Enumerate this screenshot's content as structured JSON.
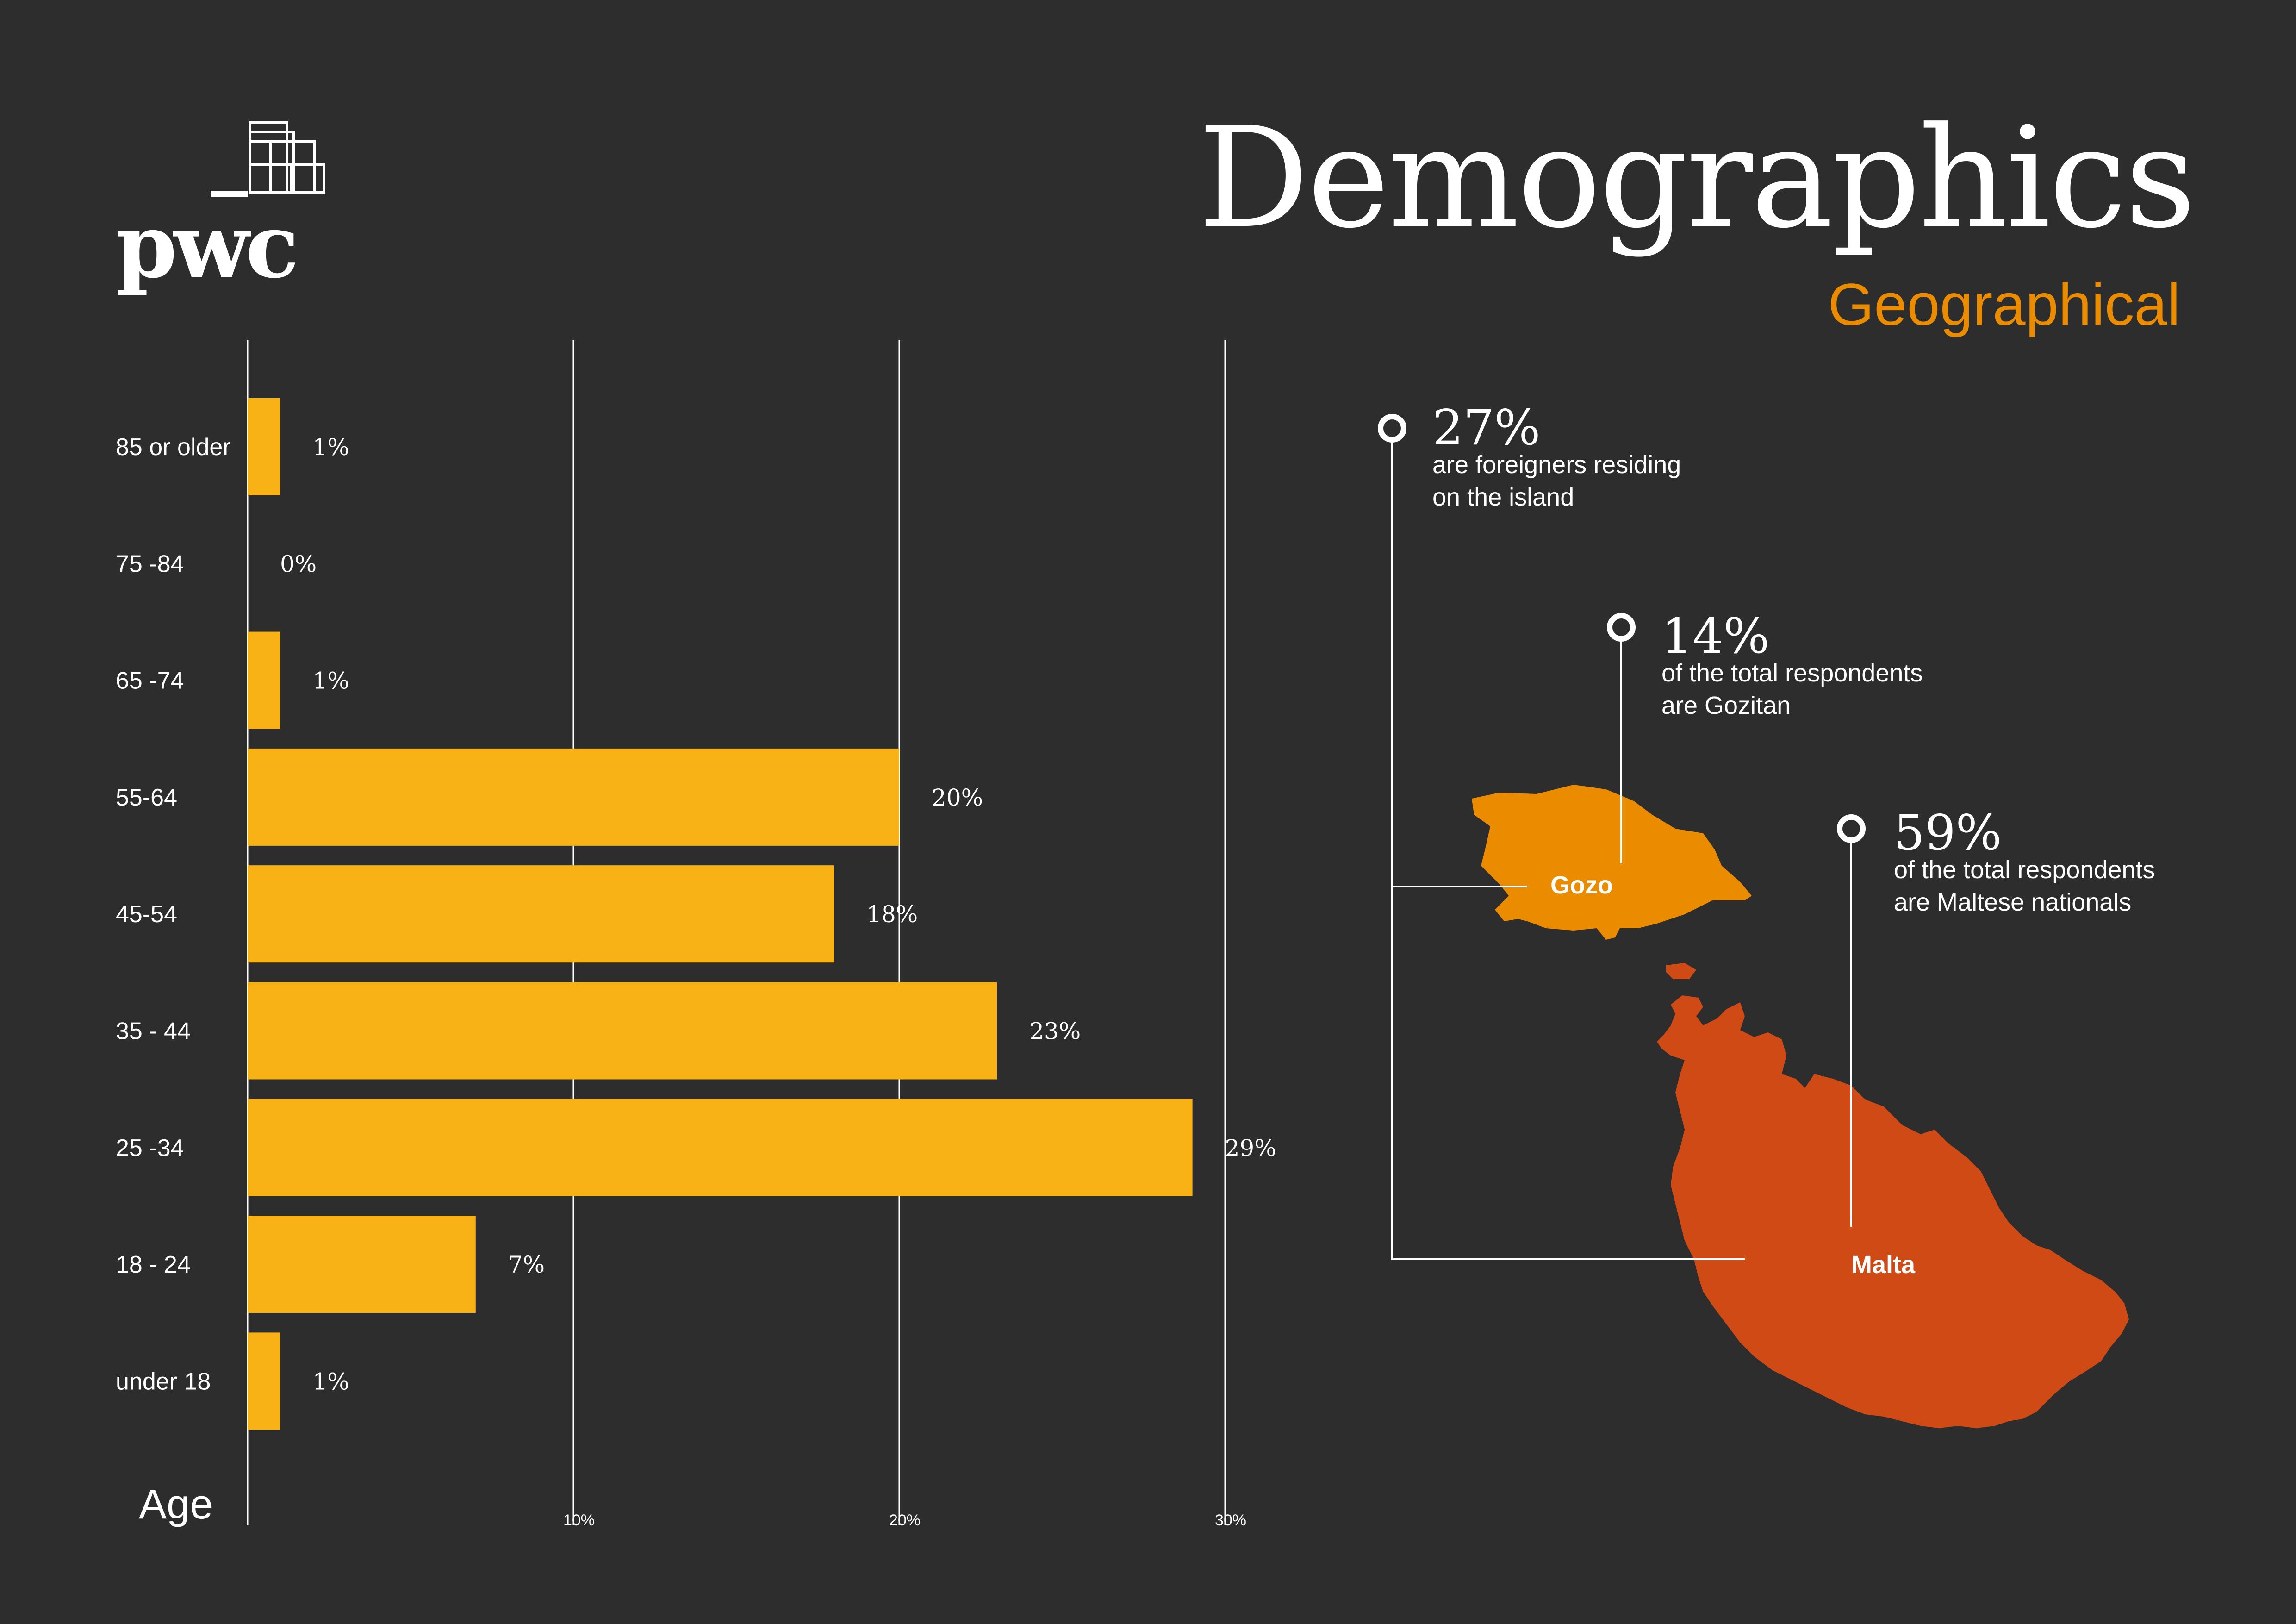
{
  "header": {
    "logo_text": "pwc",
    "title": "Demographics",
    "subtitle": "Geographical"
  },
  "colors": {
    "background": "#2d2d2d",
    "bar": "#f8b216",
    "accent": "#eb8c00",
    "gozo": "#eb8c00",
    "malta": "#d04a16",
    "text": "#ffffff"
  },
  "chart_data": {
    "type": "bar",
    "orientation": "horizontal",
    "ylabel": "Age",
    "categories": [
      "85 or older",
      "75 -84",
      "65 -74",
      "55-64",
      "45-54",
      "35 - 44",
      "25 -34",
      "18 - 24",
      "under 18"
    ],
    "values": [
      1,
      0,
      1,
      20,
      18,
      23,
      29,
      7,
      1
    ],
    "value_labels": [
      "1%",
      "0%",
      "1%",
      "20%",
      "18%",
      "23%",
      "29%",
      "7%",
      "1%"
    ],
    "ticks": [
      10,
      20,
      30
    ],
    "tick_labels": [
      "10%",
      "20%",
      "30%"
    ],
    "xlim": [
      0,
      30
    ],
    "grid": true
  },
  "map": {
    "callouts": [
      {
        "percent": "27%",
        "line1": "are foreigners residing",
        "line2": "on the island"
      },
      {
        "percent": "14%",
        "line1": "of the total respondents",
        "line2": "are Gozitan"
      },
      {
        "percent": "59%",
        "line1": "of the total respondents",
        "line2": "are Maltese nationals"
      }
    ],
    "islands": [
      {
        "name": "Gozo"
      },
      {
        "name": "Malta"
      }
    ]
  }
}
